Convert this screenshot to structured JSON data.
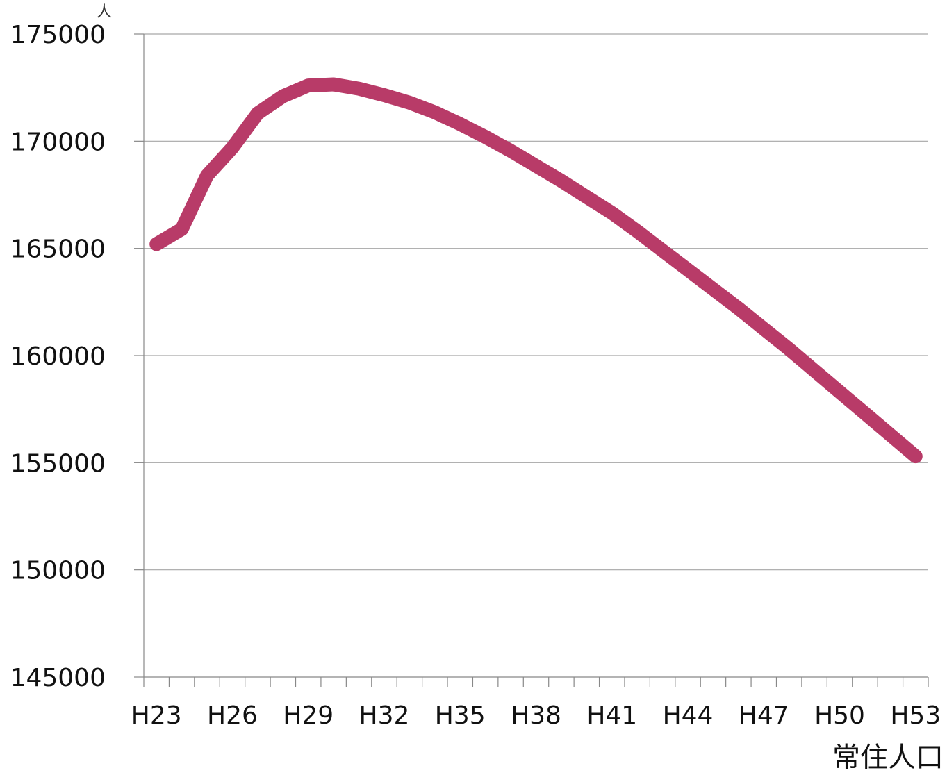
{
  "chart_data": {
    "type": "line",
    "title": "",
    "xlabel": "常住人口",
    "ylabel": "人",
    "ylim": [
      145000,
      175000
    ],
    "yticks": [
      "145000",
      "150000",
      "155000",
      "160000",
      "165000",
      "170000",
      "175000"
    ],
    "xtick_labels": [
      "H23",
      "H26",
      "H29",
      "H32",
      "H35",
      "H38",
      "H41",
      "H44",
      "H47",
      "H50",
      "H53"
    ],
    "grid": true,
    "line_color": "#b83b68",
    "x": [
      "H23",
      "H24",
      "H25",
      "H26",
      "H27",
      "H28",
      "H29",
      "H30",
      "H31",
      "H32",
      "H33",
      "H34",
      "H35",
      "H36",
      "H37",
      "H38",
      "H39",
      "H40",
      "H41",
      "H42",
      "H43",
      "H44",
      "H45",
      "H46",
      "H47",
      "H48",
      "H49",
      "H50",
      "H51",
      "H52",
      "H53"
    ],
    "series": [
      {
        "values": [
          165200,
          165900,
          168400,
          169700,
          171300,
          172100,
          172600,
          172650,
          172450,
          172150,
          171800,
          171350,
          170800,
          170200,
          169550,
          168850,
          168150,
          167400,
          166650,
          165800,
          164900,
          164000,
          163100,
          162200,
          161250,
          160300,
          159300,
          158300,
          157300,
          156300,
          155300
        ]
      }
    ]
  }
}
